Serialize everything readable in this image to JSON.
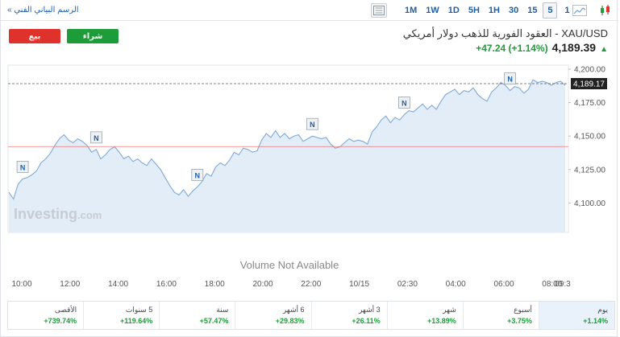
{
  "toolbar": {
    "advanced_chart_label": "الرسم البياني الفني »",
    "timeframes": [
      "1M",
      "1W",
      "1D",
      "5H",
      "1H",
      "30",
      "15",
      "5",
      "1"
    ],
    "active_timeframe": "5",
    "icons": [
      "chart-table-icon",
      "area-chart-icon",
      "candlestick-icon"
    ]
  },
  "header": {
    "sell_label": "بيع",
    "buy_label": "شراء",
    "instrument_title": "XAU/USD - العقود الفورية للذهب دولار أمريكي",
    "last_price": "4,189.39",
    "change": "+47.24 (+1.14%)",
    "accent_up": "#1e9c39",
    "accent_down": "#e0322c"
  },
  "chart_data": {
    "type": "area",
    "x_ticks": [
      "10:00",
      "12:00",
      "14:00",
      "16:00",
      "18:00",
      "20:00",
      "22:00",
      "10/15",
      "02:30",
      "04:00",
      "06:00",
      "08:00",
      "09:3"
    ],
    "y_ticks": [
      "4,100.00",
      "4,125.00",
      "4,150.00",
      "4,175.00",
      "4,200.00"
    ],
    "ylim": [
      4078,
      4203
    ],
    "current_value": 4189.17,
    "current_value_label": "4,189.17",
    "previous_close": 4142.15,
    "values": [
      4108,
      4103,
      4114,
      4118,
      4119,
      4121,
      4124,
      4130,
      4133,
      4137,
      4143,
      4148,
      4151,
      4147,
      4145,
      4148,
      4146,
      4143,
      4138,
      4140,
      4133,
      4136,
      4140,
      4142,
      4138,
      4133,
      4135,
      4131,
      4133,
      4130,
      4128,
      4133,
      4129,
      4125,
      4119,
      4113,
      4108,
      4106,
      4110,
      4105,
      4109,
      4112,
      4116,
      4122,
      4120,
      4127,
      4130,
      4128,
      4132,
      4138,
      4136,
      4141,
      4140,
      4138,
      4139,
      4147,
      4152,
      4149,
      4154,
      4149,
      4152,
      4148,
      4150,
      4151,
      4146,
      4148,
      4150,
      4149,
      4148,
      4149,
      4144,
      4141,
      4142,
      4145,
      4148,
      4146,
      4147,
      4146,
      4144,
      4153,
      4157,
      4162,
      4165,
      4160,
      4164,
      4162,
      4166,
      4169,
      4168,
      4171,
      4174,
      4170,
      4173,
      4170,
      4176,
      4181,
      4183,
      4185,
      4181,
      4184,
      4183,
      4186,
      4181,
      4178,
      4176,
      4183,
      4186,
      4190,
      4188,
      4184,
      4187,
      4186,
      4182,
      4185,
      4192,
      4190,
      4191,
      4190,
      4188,
      4190,
      4191,
      4188
    ],
    "markers": [
      {
        "label": "N",
        "index": 3
      },
      {
        "label": "N",
        "index": 19
      },
      {
        "label": "N",
        "index": 41
      },
      {
        "label": "N",
        "index": 66
      },
      {
        "label": "N",
        "index": 86
      },
      {
        "label": "N",
        "index": 109
      }
    ],
    "volume_note": "Volume Not Available",
    "watermark": "Investing.com",
    "colors": {
      "line": "#7fa9d6",
      "fill": "#e3edf7",
      "prev_close": "#e9797a",
      "last_price": "#555555",
      "label_bg": "#222222"
    }
  },
  "performance": [
    {
      "label": "يوم",
      "value": "+1.14%",
      "active": true
    },
    {
      "label": "أسبوع",
      "value": "+3.75%",
      "active": false
    },
    {
      "label": "شهر",
      "value": "+13.89%",
      "active": false
    },
    {
      "label": "3 أشهر",
      "value": "+26.11%",
      "active": false
    },
    {
      "label": "6 أشهر",
      "value": "+29.83%",
      "active": false
    },
    {
      "label": "سنة",
      "value": "+57.47%",
      "active": false
    },
    {
      "label": "5 سنوات",
      "value": "+119.64%",
      "active": false
    },
    {
      "label": "الأقصى",
      "value": "+739.74%",
      "active": false
    }
  ]
}
